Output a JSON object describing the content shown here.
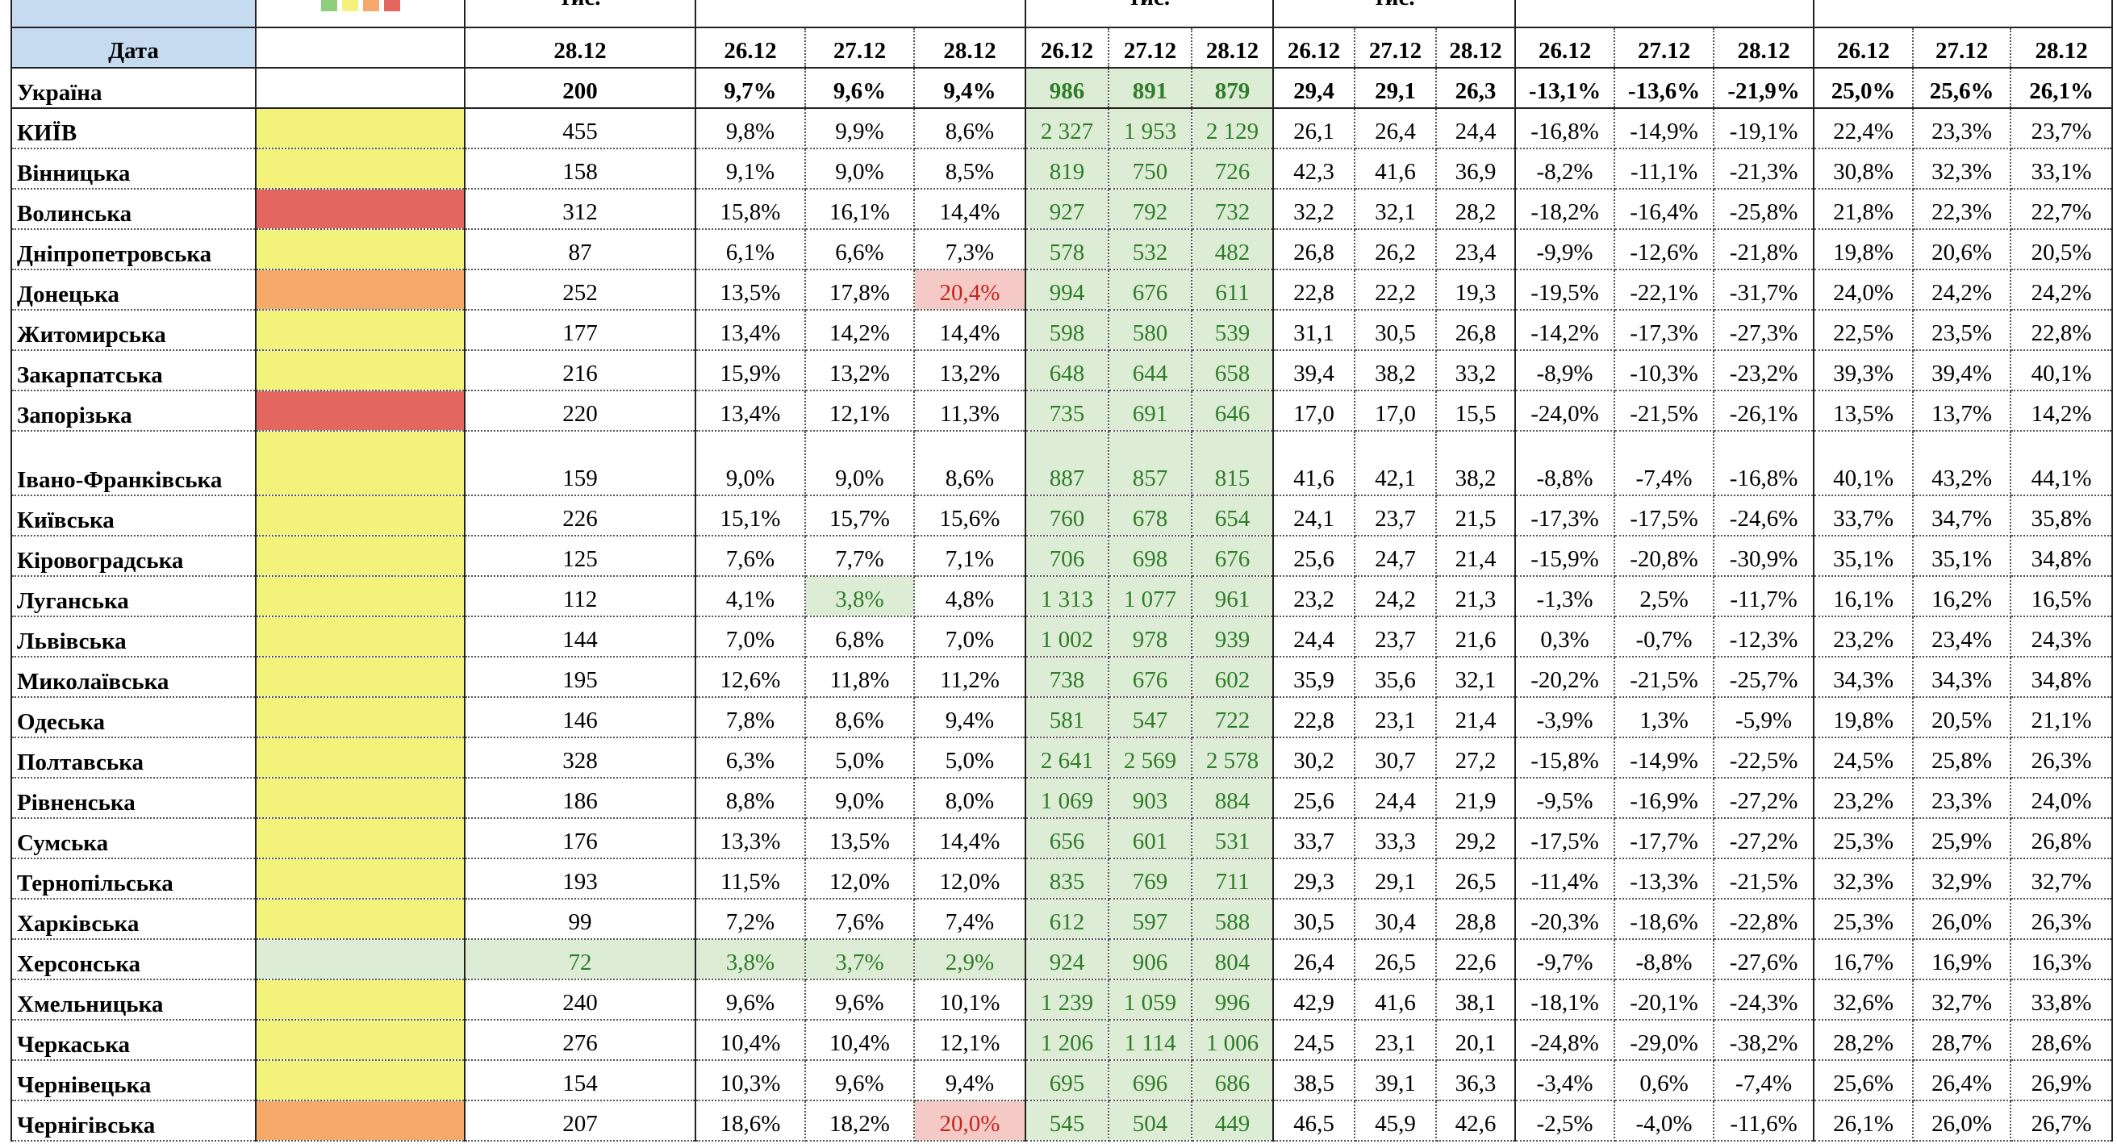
{
  "top_labels": [
    "тис.",
    "тис.",
    "тис."
  ],
  "header": {
    "corner": "Дата",
    "dates": [
      "28.12",
      "26.12",
      "27.12",
      "28.12",
      "26.12",
      "27.12",
      "28.12",
      "26.12",
      "27.12",
      "28.12",
      "26.12",
      "27.12",
      "28.12",
      "26.12",
      "27.12",
      "28.12"
    ]
  },
  "total": {
    "name": "Україна",
    "values": [
      "200",
      "9,7%",
      "9,6%",
      "9,4%",
      "986",
      "891",
      "879",
      "29,4",
      "29,1",
      "26,3",
      "-13,1%",
      "-13,6%",
      "-21,9%",
      "25,0%",
      "25,6%",
      "26,1%"
    ]
  },
  "rows": [
    {
      "name": "КИЇВ",
      "color": "#f3f37c",
      "values": [
        "455",
        "9,8%",
        "9,9%",
        "8,6%",
        "2 327",
        "1 953",
        "2 129",
        "26,1",
        "26,4",
        "24,4",
        "-16,8%",
        "-14,9%",
        "-19,1%",
        "22,4%",
        "23,3%",
        "23,7%"
      ]
    },
    {
      "name": "Вінницька",
      "color": "#f3f37c",
      "values": [
        "158",
        "9,1%",
        "9,0%",
        "8,5%",
        "819",
        "750",
        "726",
        "42,3",
        "41,6",
        "36,9",
        "-8,2%",
        "-11,1%",
        "-21,3%",
        "30,8%",
        "32,3%",
        "33,1%"
      ]
    },
    {
      "name": "Волинська",
      "color": "#e3665f",
      "values": [
        "312",
        "15,8%",
        "16,1%",
        "14,4%",
        "927",
        "792",
        "732",
        "32,2",
        "32,1",
        "28,2",
        "-18,2%",
        "-16,4%",
        "-25,8%",
        "21,8%",
        "22,3%",
        "22,7%"
      ]
    },
    {
      "name": "Дніпропетровська",
      "color": "#f3f37c",
      "values": [
        "87",
        "6,1%",
        "6,6%",
        "7,3%",
        "578",
        "532",
        "482",
        "26,8",
        "26,2",
        "23,4",
        "-9,9%",
        "-12,6%",
        "-21,8%",
        "19,8%",
        "20,6%",
        "20,5%"
      ]
    },
    {
      "name": "Донецька",
      "color": "#f5a96a",
      "values": [
        "252",
        "13,5%",
        "17,8%",
        "20,4%",
        "994",
        "676",
        "611",
        "22,8",
        "22,2",
        "19,3",
        "-19,5%",
        "-22,1%",
        "-31,7%",
        "24,0%",
        "24,2%",
        "24,2%"
      ]
    },
    {
      "name": "Житомирська",
      "color": "#f3f37c",
      "values": [
        "177",
        "13,4%",
        "14,2%",
        "14,4%",
        "598",
        "580",
        "539",
        "31,1",
        "30,5",
        "26,8",
        "-14,2%",
        "-17,3%",
        "-27,3%",
        "22,5%",
        "23,5%",
        "22,8%"
      ]
    },
    {
      "name": "Закарпатська",
      "color": "#f3f37c",
      "values": [
        "216",
        "15,9%",
        "13,2%",
        "13,2%",
        "648",
        "644",
        "658",
        "39,4",
        "38,2",
        "33,2",
        "-8,9%",
        "-10,3%",
        "-23,2%",
        "39,3%",
        "39,4%",
        "40,1%"
      ]
    },
    {
      "name": "Запорізька",
      "color": "#e3665f",
      "values": [
        "220",
        "13,4%",
        "12,1%",
        "11,3%",
        "735",
        "691",
        "646",
        "17,0",
        "17,0",
        "15,5",
        "-24,0%",
        "-21,5%",
        "-26,1%",
        "13,5%",
        "13,7%",
        "14,2%"
      ]
    },
    {
      "name": "Івано-Франківська",
      "color": "#f3f37c",
      "values": [
        "159",
        "9,0%",
        "9,0%",
        "8,6%",
        "887",
        "857",
        "815",
        "41,6",
        "42,1",
        "38,2",
        "-8,8%",
        "-7,4%",
        "-16,8%",
        "40,1%",
        "43,2%",
        "44,1%"
      ]
    },
    {
      "name": "Київська",
      "color": "#f3f37c",
      "values": [
        "226",
        "15,1%",
        "15,7%",
        "15,6%",
        "760",
        "678",
        "654",
        "24,1",
        "23,7",
        "21,5",
        "-17,3%",
        "-17,5%",
        "-24,6%",
        "33,7%",
        "34,7%",
        "35,8%"
      ]
    },
    {
      "name": "Кіровоградська",
      "color": "#f3f37c",
      "values": [
        "125",
        "7,6%",
        "7,7%",
        "7,1%",
        "706",
        "698",
        "676",
        "25,6",
        "24,7",
        "21,4",
        "-15,9%",
        "-20,8%",
        "-30,9%",
        "35,1%",
        "35,1%",
        "34,8%"
      ]
    },
    {
      "name": "Луганська",
      "color": "#f3f37c",
      "values": [
        "112",
        "4,1%",
        "3,8%",
        "4,8%",
        "1 313",
        "1 077",
        "961",
        "23,2",
        "24,2",
        "21,3",
        "-1,3%",
        "2,5%",
        "-11,7%",
        "16,1%",
        "16,2%",
        "16,5%"
      ]
    },
    {
      "name": "Львівська",
      "color": "#f3f37c",
      "values": [
        "144",
        "7,0%",
        "6,8%",
        "7,0%",
        "1 002",
        "978",
        "939",
        "24,4",
        "23,7",
        "21,6",
        "0,3%",
        "-0,7%",
        "-12,3%",
        "23,2%",
        "23,4%",
        "24,3%"
      ]
    },
    {
      "name": "Миколаївська",
      "color": "#f3f37c",
      "values": [
        "195",
        "12,6%",
        "11,8%",
        "11,2%",
        "738",
        "676",
        "602",
        "35,9",
        "35,6",
        "32,1",
        "-20,2%",
        "-21,5%",
        "-25,7%",
        "34,3%",
        "34,3%",
        "34,8%"
      ]
    },
    {
      "name": "Одеська",
      "color": "#f3f37c",
      "values": [
        "146",
        "7,8%",
        "8,6%",
        "9,4%",
        "581",
        "547",
        "722",
        "22,8",
        "23,1",
        "21,4",
        "-3,9%",
        "1,3%",
        "-5,9%",
        "19,8%",
        "20,5%",
        "21,1%"
      ]
    },
    {
      "name": "Полтавська",
      "color": "#f3f37c",
      "values": [
        "328",
        "6,3%",
        "5,0%",
        "5,0%",
        "2 641",
        "2 569",
        "2 578",
        "30,2",
        "30,7",
        "27,2",
        "-15,8%",
        "-14,9%",
        "-22,5%",
        "24,5%",
        "25,8%",
        "26,3%"
      ]
    },
    {
      "name": "Рівненська",
      "color": "#f3f37c",
      "values": [
        "186",
        "8,8%",
        "9,0%",
        "8,0%",
        "1 069",
        "903",
        "884",
        "25,6",
        "24,4",
        "21,9",
        "-9,5%",
        "-16,9%",
        "-27,2%",
        "23,2%",
        "23,3%",
        "24,0%"
      ]
    },
    {
      "name": "Сумська",
      "color": "#f3f37c",
      "values": [
        "176",
        "13,3%",
        "13,5%",
        "14,4%",
        "656",
        "601",
        "531",
        "33,7",
        "33,3",
        "29,2",
        "-17,5%",
        "-17,7%",
        "-27,2%",
        "25,3%",
        "25,9%",
        "26,8%"
      ]
    },
    {
      "name": "Тернопільська",
      "color": "#f3f37c",
      "values": [
        "193",
        "11,5%",
        "12,0%",
        "12,0%",
        "835",
        "769",
        "711",
        "29,3",
        "29,1",
        "26,5",
        "-11,4%",
        "-13,3%",
        "-21,5%",
        "32,3%",
        "32,9%",
        "32,7%"
      ]
    },
    {
      "name": "Харківська",
      "color": "#f3f37c",
      "values": [
        "99",
        "7,2%",
        "7,6%",
        "7,4%",
        "612",
        "597",
        "588",
        "30,5",
        "30,4",
        "28,8",
        "-20,3%",
        "-18,6%",
        "-22,8%",
        "25,3%",
        "26,0%",
        "26,3%"
      ]
    },
    {
      "name": "Херсонська",
      "color": "#dcecd5",
      "values": [
        "72",
        "3,8%",
        "3,7%",
        "2,9%",
        "924",
        "906",
        "804",
        "26,4",
        "26,5",
        "22,6",
        "-9,7%",
        "-8,8%",
        "-27,6%",
        "16,7%",
        "16,9%",
        "16,3%"
      ]
    },
    {
      "name": "Хмельницька",
      "color": "#f3f37c",
      "values": [
        "240",
        "9,6%",
        "9,6%",
        "10,1%",
        "1 239",
        "1 059",
        "996",
        "42,9",
        "41,6",
        "38,1",
        "-18,1%",
        "-20,1%",
        "-24,3%",
        "32,6%",
        "32,7%",
        "33,8%"
      ]
    },
    {
      "name": "Черкаська",
      "color": "#f3f37c",
      "values": [
        "276",
        "10,4%",
        "10,4%",
        "12,1%",
        "1 206",
        "1 114",
        "1 006",
        "24,5",
        "23,1",
        "20,1",
        "-24,8%",
        "-29,0%",
        "-38,2%",
        "28,2%",
        "28,7%",
        "28,6%"
      ]
    },
    {
      "name": "Чернівецька",
      "color": "#f3f37c",
      "values": [
        "154",
        "10,3%",
        "9,6%",
        "9,4%",
        "695",
        "696",
        "686",
        "38,5",
        "39,1",
        "36,3",
        "-3,4%",
        "0,6%",
        "-7,4%",
        "25,6%",
        "26,4%",
        "26,9%"
      ]
    },
    {
      "name": "Чернігівська",
      "color": "#f5a96a",
      "values": [
        "207",
        "18,6%",
        "18,2%",
        "20,0%",
        "545",
        "504",
        "449",
        "46,5",
        "45,9",
        "42,6",
        "-2,5%",
        "-4,0%",
        "-11,6%",
        "26,1%",
        "26,0%",
        "26,7%"
      ]
    }
  ]
}
